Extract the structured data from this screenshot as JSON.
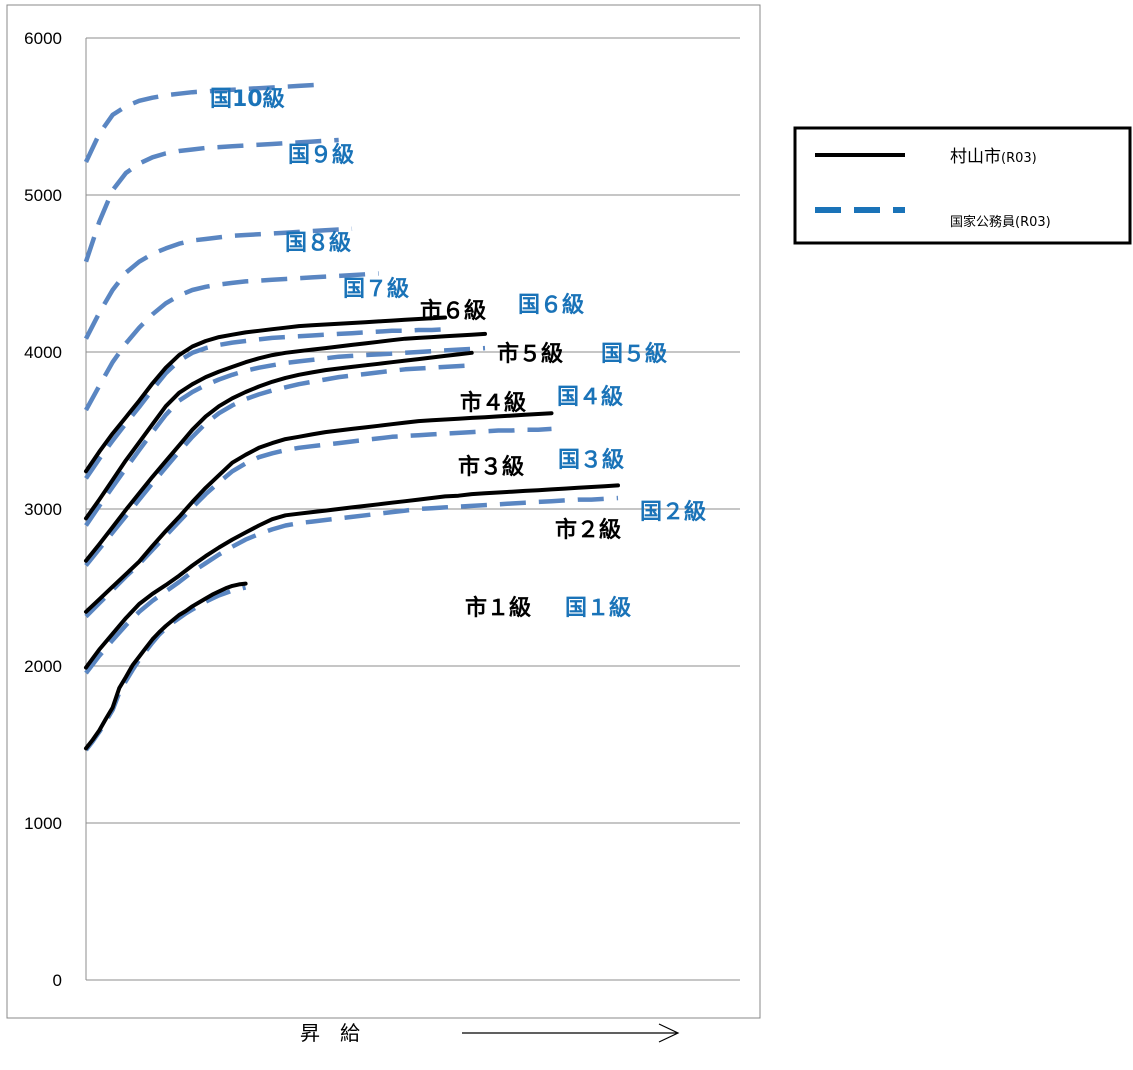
{
  "chart_data": {
    "type": "line",
    "ylim": [
      0,
      6000
    ],
    "yticks": [
      "0",
      "1000",
      "2000",
      "3000",
      "4000",
      "5000",
      "6000"
    ],
    "grid": true,
    "xlabel": "昇　給",
    "legend": {
      "placement": "right",
      "entries": [
        {
          "name": "村山市",
          "suffix": "(R03)",
          "style": "solid",
          "color": "#000000"
        },
        {
          "name": "国家公務員",
          "suffix": "(R03)",
          "style": "dashed",
          "color": "#1a73b8"
        }
      ]
    },
    "city_series": [
      {
        "name": "市１級",
        "x": [
          0,
          1,
          2,
          3,
          4,
          5,
          6,
          7,
          8,
          9,
          10,
          11,
          12,
          13,
          14,
          15,
          16,
          17,
          18,
          19,
          20,
          21,
          22,
          23,
          24
        ],
        "values": [
          1475,
          1530,
          1590,
          1665,
          1735,
          1860,
          1930,
          2005,
          2060,
          2115,
          2170,
          2215,
          2255,
          2290,
          2325,
          2350,
          2380,
          2405,
          2430,
          2455,
          2475,
          2495,
          2510,
          2520,
          2525
        ]
      },
      {
        "name": "市２級",
        "x": [
          0,
          2,
          4,
          6,
          8,
          10,
          12,
          14,
          16,
          18,
          20,
          22,
          24,
          26,
          28,
          30,
          32,
          34,
          36,
          38,
          40,
          42,
          44,
          46,
          48,
          50,
          52,
          54,
          56,
          58,
          60,
          62,
          64,
          66,
          68,
          70,
          72,
          74,
          76,
          78,
          80
        ],
        "values": [
          1990,
          2105,
          2205,
          2305,
          2395,
          2460,
          2515,
          2575,
          2640,
          2700,
          2755,
          2805,
          2850,
          2895,
          2935,
          2960,
          2970,
          2980,
          2990,
          3000,
          3010,
          3020,
          3030,
          3040,
          3050,
          3060,
          3070,
          3080,
          3085,
          3095,
          3100,
          3105,
          3110,
          3115,
          3120,
          3125,
          3130,
          3135,
          3140,
          3145,
          3150
        ]
      },
      {
        "name": "市３級",
        "x": [
          0,
          2,
          4,
          6,
          8,
          10,
          12,
          14,
          16,
          18,
          20,
          22,
          24,
          26,
          28,
          30,
          32,
          34,
          36,
          38,
          40,
          42,
          44,
          46,
          48,
          50,
          52,
          54,
          56,
          58,
          60,
          62,
          64,
          66,
          68,
          70
        ],
        "values": [
          2345,
          2425,
          2505,
          2585,
          2665,
          2765,
          2860,
          2950,
          3045,
          3135,
          3215,
          3295,
          3345,
          3390,
          3420,
          3445,
          3460,
          3475,
          3490,
          3500,
          3510,
          3520,
          3530,
          3540,
          3550,
          3560,
          3565,
          3570,
          3575,
          3580,
          3585,
          3590,
          3595,
          3600,
          3605,
          3610
        ]
      },
      {
        "name": "市４級",
        "x": [
          0,
          2,
          4,
          6,
          8,
          10,
          12,
          14,
          16,
          18,
          20,
          22,
          24,
          26,
          28,
          30,
          32,
          34,
          36,
          38,
          40,
          42,
          44,
          46,
          48,
          50,
          52,
          54,
          56,
          58
        ],
        "values": [
          2670,
          2775,
          2885,
          2995,
          3100,
          3205,
          3305,
          3405,
          3505,
          3590,
          3655,
          3705,
          3745,
          3780,
          3810,
          3835,
          3855,
          3870,
          3885,
          3895,
          3905,
          3915,
          3925,
          3935,
          3945,
          3955,
          3965,
          3975,
          3985,
          3995
        ]
      },
      {
        "name": "市５級",
        "x": [
          0,
          2,
          4,
          6,
          8,
          10,
          12,
          14,
          16,
          18,
          20,
          22,
          24,
          26,
          28,
          30,
          32,
          34,
          36,
          38,
          40,
          42,
          44,
          46,
          48,
          50,
          52,
          54,
          56,
          58,
          60
        ],
        "values": [
          2940,
          3060,
          3185,
          3310,
          3425,
          3540,
          3655,
          3740,
          3795,
          3840,
          3875,
          3905,
          3935,
          3960,
          3980,
          3995,
          4005,
          4015,
          4025,
          4035,
          4045,
          4055,
          4065,
          4075,
          4085,
          4090,
          4095,
          4100,
          4105,
          4110,
          4115
        ]
      },
      {
        "name": "市６級",
        "x": [
          0,
          2,
          4,
          6,
          8,
          10,
          12,
          14,
          16,
          18,
          20,
          22,
          24,
          26,
          28,
          30,
          32,
          34,
          36,
          38,
          40,
          42,
          44,
          46,
          48,
          50,
          52,
          54
        ],
        "values": [
          3240,
          3365,
          3480,
          3585,
          3690,
          3800,
          3900,
          3980,
          4035,
          4070,
          4095,
          4110,
          4125,
          4135,
          4145,
          4155,
          4165,
          4170,
          4175,
          4180,
          4185,
          4190,
          4195,
          4200,
          4205,
          4210,
          4215,
          4220
        ]
      }
    ],
    "national_series": [
      {
        "name": "国１級",
        "x": [
          0,
          1,
          2,
          3,
          4,
          5,
          6,
          7,
          8,
          9,
          10,
          11,
          12,
          13,
          14,
          15,
          16,
          17,
          18,
          19,
          20,
          21,
          22,
          23,
          24
        ],
        "values": [
          1465,
          1520,
          1580,
          1650,
          1720,
          1830,
          1905,
          1975,
          2040,
          2095,
          2150,
          2200,
          2240,
          2275,
          2305,
          2335,
          2360,
          2385,
          2410,
          2430,
          2450,
          2465,
          2480,
          2490,
          2500
        ]
      },
      {
        "name": "国２級",
        "x": [
          0,
          2,
          4,
          6,
          8,
          10,
          12,
          14,
          16,
          18,
          20,
          22,
          24,
          26,
          28,
          30,
          32,
          34,
          36,
          38,
          40,
          42,
          44,
          46,
          48,
          50,
          52,
          54,
          56,
          58,
          60,
          62,
          64,
          66,
          68,
          70,
          72,
          74,
          76,
          78,
          80
        ],
        "values": [
          1955,
          2065,
          2165,
          2260,
          2345,
          2415,
          2475,
          2535,
          2600,
          2655,
          2710,
          2760,
          2805,
          2840,
          2870,
          2895,
          2910,
          2920,
          2930,
          2940,
          2950,
          2960,
          2970,
          2980,
          2990,
          3000,
          3005,
          3010,
          3015,
          3020,
          3025,
          3030,
          3035,
          3040,
          3045,
          3050,
          3055,
          3060,
          3060,
          3065,
          3070
        ]
      },
      {
        "name": "国３級",
        "x": [
          0,
          2,
          4,
          6,
          8,
          10,
          12,
          14,
          16,
          18,
          20,
          22,
          24,
          26,
          28,
          30,
          32,
          34,
          36,
          38,
          40,
          42,
          44,
          46,
          48,
          50,
          52,
          54,
          56,
          58,
          60,
          62,
          64,
          66,
          68,
          70
        ],
        "values": [
          2315,
          2400,
          2485,
          2570,
          2650,
          2740,
          2830,
          2920,
          3010,
          3095,
          3170,
          3240,
          3290,
          3330,
          3355,
          3375,
          3390,
          3400,
          3410,
          3420,
          3430,
          3440,
          3450,
          3460,
          3465,
          3470,
          3475,
          3480,
          3485,
          3490,
          3495,
          3500,
          3500,
          3505,
          3505,
          3510
        ]
      },
      {
        "name": "国４級",
        "x": [
          0,
          2,
          4,
          6,
          8,
          10,
          12,
          14,
          16,
          18,
          20,
          22,
          24,
          26,
          28,
          30,
          32,
          34,
          36,
          38,
          40,
          42,
          44,
          46,
          48,
          50,
          52,
          54,
          56,
          58
        ],
        "values": [
          2640,
          2745,
          2850,
          2955,
          3060,
          3165,
          3265,
          3365,
          3460,
          3545,
          3610,
          3660,
          3700,
          3730,
          3755,
          3775,
          3795,
          3810,
          3825,
          3840,
          3850,
          3860,
          3870,
          3880,
          3890,
          3895,
          3900,
          3905,
          3910,
          3915
        ]
      },
      {
        "name": "国５級",
        "x": [
          0,
          2,
          4,
          6,
          8,
          10,
          12,
          14,
          16,
          18,
          20,
          22,
          24,
          26,
          28,
          30,
          32,
          34,
          36,
          38,
          40,
          42,
          44,
          46,
          48,
          50,
          52,
          54,
          56,
          58,
          60
        ],
        "values": [
          2895,
          3020,
          3140,
          3260,
          3375,
          3490,
          3600,
          3690,
          3745,
          3790,
          3825,
          3855,
          3880,
          3900,
          3915,
          3930,
          3940,
          3950,
          3960,
          3970,
          3975,
          3980,
          3985,
          3990,
          3995,
          4000,
          4005,
          4010,
          4015,
          4020,
          4025
        ]
      },
      {
        "name": "国６級",
        "x": [
          0,
          2,
          4,
          6,
          8,
          10,
          12,
          14,
          16,
          18,
          20,
          22,
          24,
          26,
          28,
          30,
          32,
          34,
          36,
          38,
          40,
          42,
          44,
          46,
          48,
          50,
          52,
          54
        ],
        "values": [
          3195,
          3320,
          3435,
          3545,
          3650,
          3760,
          3865,
          3945,
          3995,
          4025,
          4045,
          4060,
          4070,
          4080,
          4090,
          4095,
          4100,
          4105,
          4110,
          4115,
          4120,
          4125,
          4130,
          4135,
          4135,
          4140,
          4140,
          4145
        ]
      },
      {
        "name": "国７級",
        "x": [
          0,
          2,
          4,
          6,
          8,
          10,
          12,
          14,
          16,
          18,
          20,
          22,
          24,
          26,
          28,
          30,
          32,
          34,
          36,
          38,
          40,
          42,
          44
        ],
        "values": [
          3630,
          3785,
          3935,
          4055,
          4155,
          4240,
          4310,
          4360,
          4395,
          4415,
          4430,
          4440,
          4450,
          4455,
          4460,
          4465,
          4470,
          4475,
          4480,
          4485,
          4490,
          4495,
          4500
        ]
      },
      {
        "name": "国８級",
        "x": [
          0,
          2,
          4,
          6,
          8,
          10,
          12,
          14,
          16,
          18,
          20,
          22,
          24,
          26,
          28,
          30,
          32,
          34,
          36,
          38,
          40
        ],
        "values": [
          4085,
          4250,
          4395,
          4505,
          4575,
          4625,
          4660,
          4690,
          4710,
          4720,
          4730,
          4740,
          4745,
          4750,
          4755,
          4760,
          4765,
          4770,
          4775,
          4780,
          4785
        ]
      },
      {
        "name": "国９級",
        "x": [
          0,
          2,
          4,
          6,
          8,
          10,
          12,
          14,
          16,
          18,
          20,
          22,
          24,
          26,
          28,
          30,
          32,
          34,
          36,
          38
        ],
        "values": [
          4575,
          4830,
          5030,
          5140,
          5200,
          5240,
          5265,
          5280,
          5290,
          5300,
          5305,
          5310,
          5315,
          5320,
          5325,
          5330,
          5335,
          5340,
          5345,
          5350
        ]
      },
      {
        "name": "国10級",
        "x": [
          0,
          2,
          4,
          6,
          8,
          10,
          12,
          14,
          16,
          18,
          20,
          22,
          24,
          26,
          28,
          30,
          32,
          34,
          36
        ],
        "values": [
          5210,
          5390,
          5510,
          5565,
          5600,
          5620,
          5635,
          5645,
          5655,
          5660,
          5665,
          5670,
          5675,
          5680,
          5685,
          5690,
          5695,
          5700,
          5705
        ]
      }
    ]
  }
}
